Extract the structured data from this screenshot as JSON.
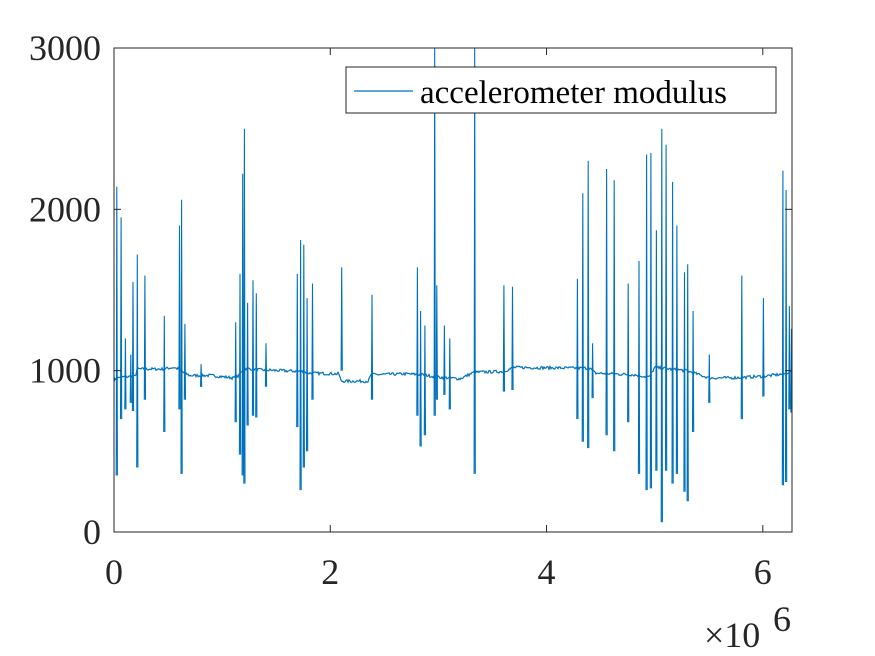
{
  "chart_data": {
    "type": "line",
    "title": "",
    "xlabel": "",
    "ylabel": "",
    "xlim": [
      0,
      6270000
    ],
    "ylim": [
      0,
      3000
    ],
    "x_exponent_label": "×10",
    "x_exponent_power": "6",
    "x_ticks": [
      {
        "value": 0,
        "label": "0"
      },
      {
        "value": 2000000,
        "label": "2"
      },
      {
        "value": 4000000,
        "label": "4"
      },
      {
        "value": 6000000,
        "label": "6"
      }
    ],
    "y_ticks": [
      {
        "value": 0,
        "label": "0"
      },
      {
        "value": 1000,
        "label": "1000"
      },
      {
        "value": 2000,
        "label": "2000"
      },
      {
        "value": 3000,
        "label": "3000"
      }
    ],
    "grid": false,
    "legend_position": "top-right",
    "colors": {
      "series": "#0072bd",
      "axes": "#262626"
    },
    "series": [
      {
        "name": "accelerometer modulus",
        "baseline": [
          [
            0,
            940
          ],
          [
            50000,
            960
          ],
          [
            200000,
            965
          ],
          [
            210000,
            1010
          ],
          [
            450000,
            1010
          ],
          [
            550000,
            1020
          ],
          [
            600000,
            1010
          ],
          [
            650000,
            985
          ],
          [
            700000,
            970
          ],
          [
            900000,
            970
          ],
          [
            1100000,
            955
          ],
          [
            1150000,
            965
          ],
          [
            1200000,
            1015
          ],
          [
            1350000,
            1005
          ],
          [
            1550000,
            1000
          ],
          [
            1750000,
            995
          ],
          [
            1800000,
            985
          ],
          [
            2080000,
            980
          ],
          [
            2100000,
            935
          ],
          [
            2350000,
            935
          ],
          [
            2380000,
            975
          ],
          [
            2700000,
            980
          ],
          [
            2850000,
            975
          ],
          [
            3000000,
            960
          ],
          [
            3200000,
            950
          ],
          [
            3330000,
            990
          ],
          [
            3600000,
            995
          ],
          [
            3700000,
            1020
          ],
          [
            4400000,
            1015
          ],
          [
            4450000,
            985
          ],
          [
            4800000,
            975
          ],
          [
            4950000,
            960
          ],
          [
            5000000,
            1020
          ],
          [
            5300000,
            1000
          ],
          [
            5500000,
            955
          ],
          [
            5700000,
            955
          ],
          [
            6000000,
            965
          ],
          [
            6200000,
            980
          ],
          [
            6270000,
            1000
          ]
        ],
        "spikes": [
          [
            20000,
            2140,
            350
          ],
          [
            60000,
            1950,
            700
          ],
          [
            100000,
            1200,
            760
          ],
          [
            150000,
            1100,
            800
          ],
          [
            170000,
            1550,
            750
          ],
          [
            210000,
            1720,
            400
          ],
          [
            280000,
            1590,
            820
          ],
          [
            460000,
            1340,
            620
          ],
          [
            600000,
            1900,
            760
          ],
          [
            620000,
            2060,
            360
          ],
          [
            650000,
            1290,
            820
          ],
          [
            800000,
            1040,
            900
          ],
          [
            1120000,
            1300,
            680
          ],
          [
            1160000,
            1600,
            480
          ],
          [
            1185000,
            2220,
            350
          ],
          [
            1200000,
            2500,
            300
          ],
          [
            1230000,
            1420,
            660
          ],
          [
            1280000,
            1560,
            720
          ],
          [
            1310000,
            1480,
            710
          ],
          [
            1400000,
            1170,
            900
          ],
          [
            1690000,
            1600,
            650
          ],
          [
            1720000,
            1810,
            260
          ],
          [
            1750000,
            1780,
            400
          ],
          [
            1780000,
            1450,
            500
          ],
          [
            1830000,
            1540,
            820
          ],
          [
            2100000,
            1640,
            1000
          ],
          [
            2380000,
            1470,
            820
          ],
          [
            2800000,
            1640,
            720
          ],
          [
            2830000,
            1370,
            530
          ],
          [
            2870000,
            1280,
            600
          ],
          [
            2960000,
            3000,
            720
          ],
          [
            2980000,
            1530,
            820
          ],
          [
            3050000,
            1280,
            850
          ],
          [
            3100000,
            1200,
            760
          ],
          [
            3330000,
            3000,
            360
          ],
          [
            3600000,
            1530,
            870
          ],
          [
            3680000,
            1520,
            880
          ],
          [
            4280000,
            1570,
            700
          ],
          [
            4330000,
            2100,
            560
          ],
          [
            4380000,
            2300,
            520
          ],
          [
            4420000,
            1170,
            830
          ],
          [
            4550000,
            2250,
            600
          ],
          [
            4620000,
            2180,
            500
          ],
          [
            4750000,
            1540,
            680
          ],
          [
            4850000,
            1680,
            360
          ],
          [
            4920000,
            2340,
            260
          ],
          [
            4960000,
            2350,
            270
          ],
          [
            5010000,
            1870,
            380
          ],
          [
            5060000,
            2500,
            60
          ],
          [
            5100000,
            2400,
            380
          ],
          [
            5160000,
            2170,
            300
          ],
          [
            5200000,
            1900,
            360
          ],
          [
            5270000,
            1610,
            250
          ],
          [
            5300000,
            1660,
            190
          ],
          [
            5350000,
            1370,
            620
          ],
          [
            5500000,
            1100,
            800
          ],
          [
            5800000,
            1590,
            700
          ],
          [
            6000000,
            1450,
            840
          ],
          [
            6180000,
            2240,
            290
          ],
          [
            6210000,
            2120,
            310
          ],
          [
            6240000,
            1400,
            760
          ],
          [
            6260000,
            1260,
            740
          ]
        ]
      }
    ]
  }
}
